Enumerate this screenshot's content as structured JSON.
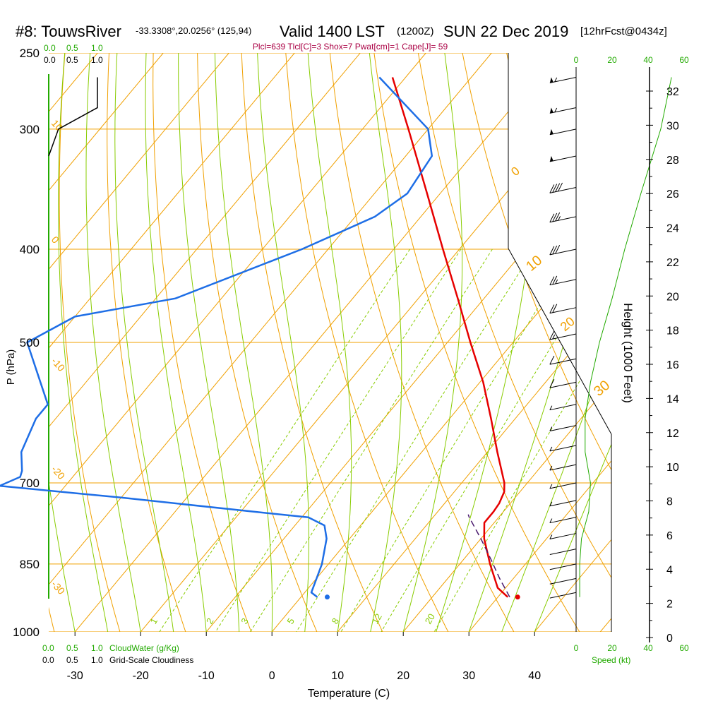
{
  "header": {
    "station": "#8: TouwsRiver",
    "coords": "-33.3308°,20.0256° (125,94)",
    "valid_main": "Valid 1400 LST",
    "valid_z": "(1200Z)",
    "date": "SUN 22 Dec 2019",
    "forecast": "[12hrFcst@0434z]",
    "indices": "Plcl=639 Tlcl[C]=3 Shox=7 Pwat[cm]=1 Cape[J]= 59"
  },
  "colors": {
    "temperature": "#e60000",
    "dewpoint": "#1e6ee6",
    "parcel": "#4a1a6e",
    "isotherm": "#f0a000",
    "dry_adiabat": "#f0a000",
    "moist_adiabat": "#88cc00",
    "mixing_ratio": "#88cc00",
    "green_text": "#22aa00",
    "indices_text": "#aa0044",
    "cloud_line": "#000000",
    "axis": "#000000"
  },
  "top_scale": {
    "green": [
      "0.0",
      "0.5",
      "1.0"
    ],
    "black": [
      "0.0",
      "0.5",
      "1.0"
    ]
  },
  "bottom_scale": {
    "green": [
      "0.0",
      "0.5",
      "1.0"
    ],
    "green_title": "CloudWater (g/Kg)",
    "black": [
      "0.0",
      "0.5",
      "1.0"
    ],
    "black_title": "Grid-Scale Cloudiness"
  },
  "wind_scale": {
    "top": [
      "0",
      "20",
      "40",
      "60"
    ],
    "bottom": [
      "0",
      "20",
      "40",
      "60"
    ],
    "title": "Speed (kt)"
  },
  "chart_data": {
    "type": "line",
    "xlabel": "Temperature (C)",
    "ylabel": "P (hPa)",
    "right_label": "Height (1000 Feet)",
    "x_ticks": [
      "-30",
      "-20",
      "-10",
      "0",
      "10",
      "20",
      "30",
      "40"
    ],
    "x_tick_values": [
      -30,
      -20,
      -10,
      0,
      10,
      20,
      30,
      40
    ],
    "p_ticks": [
      "250",
      "300",
      "400",
      "500",
      "700",
      "850",
      "1000"
    ],
    "p_tick_values": [
      250,
      300,
      400,
      500,
      700,
      850,
      1000
    ],
    "height_ticks": [
      "0",
      "2",
      "4",
      "6",
      "8",
      "10",
      "12",
      "14",
      "16",
      "18",
      "20",
      "22",
      "24",
      "26",
      "28",
      "30",
      "32"
    ],
    "height_tick_values": [
      0,
      2,
      4,
      6,
      8,
      10,
      12,
      14,
      16,
      18,
      20,
      22,
      24,
      26,
      28,
      30,
      32
    ],
    "ylim": [
      250,
      1000
    ],
    "skew_temp_range_at_1000": [
      -34,
      36
    ],
    "mixing_ratio_labels": [
      "1",
      "2",
      "3",
      "5",
      "8",
      "12",
      "20"
    ],
    "mixing_ratio_values": [
      1,
      2,
      3,
      5,
      8,
      12,
      20
    ],
    "dry_adiabat_labels": [
      "10",
      "0",
      "-10",
      "-20",
      "-30"
    ],
    "moist_adiabat_labels": [
      "0",
      "10",
      "20",
      "30"
    ],
    "series": [
      {
        "name": "Temperature",
        "points": [
          {
            "p": 920,
            "t": 31.5
          },
          {
            "p": 900,
            "t": 28.8
          },
          {
            "p": 850,
            "t": 24.6
          },
          {
            "p": 800,
            "t": 20.5
          },
          {
            "p": 770,
            "t": 18.5
          },
          {
            "p": 750,
            "t": 18.5
          },
          {
            "p": 735,
            "t": 18.3
          },
          {
            "p": 715,
            "t": 17.6
          },
          {
            "p": 700,
            "t": 16.5
          },
          {
            "p": 650,
            "t": 11.5
          },
          {
            "p": 600,
            "t": 6.3
          },
          {
            "p": 550,
            "t": 0.5
          },
          {
            "p": 500,
            "t": -6.5
          },
          {
            "p": 450,
            "t": -14.0
          },
          {
            "p": 400,
            "t": -22.5
          },
          {
            "p": 350,
            "t": -32.0
          },
          {
            "p": 300,
            "t": -43.0
          },
          {
            "p": 265,
            "t": -52.0
          }
        ]
      },
      {
        "name": "Dewpoint",
        "points": [
          {
            "p": 920,
            "t": 2.5
          },
          {
            "p": 910,
            "t": 1.0
          },
          {
            "p": 850,
            "t": -1.0
          },
          {
            "p": 800,
            "t": -3.5
          },
          {
            "p": 775,
            "t": -5.5
          },
          {
            "p": 760,
            "t": -9.0
          },
          {
            "p": 750,
            "t": -18.0
          },
          {
            "p": 725,
            "t": -40.0
          },
          {
            "p": 705,
            "t": -60.0
          },
          {
            "p": 690,
            "t": -58.0
          },
          {
            "p": 680,
            "t": -58.5
          },
          {
            "p": 650,
            "t": -61.0
          },
          {
            "p": 600,
            "t": -63.0
          },
          {
            "p": 580,
            "t": -63.0
          },
          {
            "p": 500,
            "t": -74.0
          },
          {
            "p": 470,
            "t": -70.0
          },
          {
            "p": 450,
            "t": -57.0
          },
          {
            "p": 400,
            "t": -44.0
          },
          {
            "p": 370,
            "t": -37.0
          },
          {
            "p": 350,
            "t": -35.0
          },
          {
            "p": 320,
            "t": -36.0
          },
          {
            "p": 300,
            "t": -40.0
          },
          {
            "p": 265,
            "t": -54.0
          }
        ]
      },
      {
        "name": "Parcel",
        "points": [
          {
            "p": 920,
            "t": 31.8
          },
          {
            "p": 880,
            "t": 27.9
          },
          {
            "p": 840,
            "t": 24.1
          },
          {
            "p": 800,
            "t": 20.0
          },
          {
            "p": 760,
            "t": 15.5
          },
          {
            "p": 755,
            "t": 15.0
          }
        ]
      }
    ],
    "surface_markers": [
      {
        "name": "surface_temperature",
        "p": 920,
        "t": 33.0
      },
      {
        "name": "surface_dewpoint",
        "p": 920,
        "t": 4.0
      }
    ],
    "cloud_profile": [
      {
        "p": 265,
        "v": 1.0
      },
      {
        "p": 285,
        "v": 1.0
      },
      {
        "p": 300,
        "v": 0.2
      },
      {
        "p": 320,
        "v": 0.0
      }
    ],
    "wind_speed_profile": [
      {
        "p": 920,
        "kt": 2
      },
      {
        "p": 850,
        "kt": 2
      },
      {
        "p": 800,
        "kt": 3
      },
      {
        "p": 750,
        "kt": 7
      },
      {
        "p": 700,
        "kt": 8
      },
      {
        "p": 650,
        "kt": 5
      },
      {
        "p": 600,
        "kt": 5
      },
      {
        "p": 550,
        "kt": 8
      },
      {
        "p": 500,
        "kt": 13
      },
      {
        "p": 450,
        "kt": 20
      },
      {
        "p": 400,
        "kt": 27
      },
      {
        "p": 350,
        "kt": 36
      },
      {
        "p": 300,
        "kt": 47
      },
      {
        "p": 265,
        "kt": 53
      }
    ],
    "wind_barbs": [
      {
        "p": 265,
        "kt": 55
      },
      {
        "p": 285,
        "kt": 55
      },
      {
        "p": 300,
        "kt": 50
      },
      {
        "p": 320,
        "kt": 50
      },
      {
        "p": 345,
        "kt": 40
      },
      {
        "p": 370,
        "kt": 35
      },
      {
        "p": 400,
        "kt": 30
      },
      {
        "p": 430,
        "kt": 25
      },
      {
        "p": 460,
        "kt": 20
      },
      {
        "p": 490,
        "kt": 15
      },
      {
        "p": 520,
        "kt": 12
      },
      {
        "p": 550,
        "kt": 10
      },
      {
        "p": 580,
        "kt": 8
      },
      {
        "p": 610,
        "kt": 8
      },
      {
        "p": 640,
        "kt": 7
      },
      {
        "p": 670,
        "kt": 7
      },
      {
        "p": 700,
        "kt": 8
      },
      {
        "p": 730,
        "kt": 8
      },
      {
        "p": 760,
        "kt": 6
      },
      {
        "p": 790,
        "kt": 5
      },
      {
        "p": 820,
        "kt": 4
      },
      {
        "p": 850,
        "kt": 3
      },
      {
        "p": 880,
        "kt": 3
      },
      {
        "p": 910,
        "kt": 2
      }
    ]
  }
}
